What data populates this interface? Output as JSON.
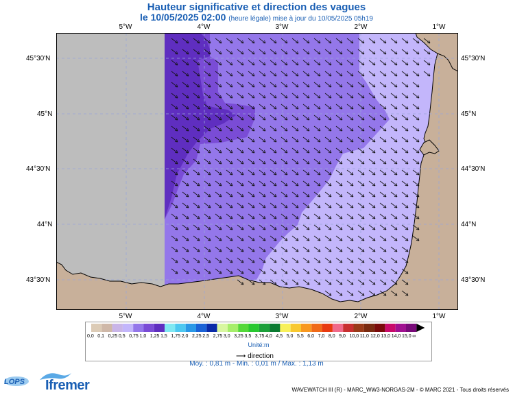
{
  "title": "Hauteur significative et direction des vagues",
  "subtitle": {
    "date": "le 10/05/2025 02:00",
    "note": "(heure légale) mise à jour du 10/05/2025 05h19"
  },
  "lon_labels": [
    "5°W",
    "4°W",
    "3°W",
    "2°W",
    "1°W"
  ],
  "lat_labels": [
    "45°30'N",
    "45°N",
    "44°30'N",
    "44°N",
    "43°30'N"
  ],
  "colors": {
    "land": "#c8b09a",
    "no_data": "#bdbdbd",
    "wave_0_5": "#c3b6fb",
    "wave_0_75": "#9477ea",
    "wave_1_0": "#7a4cd6",
    "wave_1_25": "#5f2ec0",
    "grid": "#9aa6d8",
    "text_blue": "#1a5fb4"
  },
  "legend": {
    "values": [
      "0,0",
      "0,1",
      "0,25",
      "0,5",
      "0,75",
      "1,0",
      "1,25",
      "1,5",
      "1,75",
      "2,0",
      "2,25",
      "2,5",
      "2,75",
      "3,0",
      "3,25",
      "3,5",
      "3,75",
      "4,0",
      "4,5",
      "5,0",
      "5,5",
      "6,0",
      "7,0",
      "8,0",
      "9,0",
      "10,0",
      "11,0",
      "12,0",
      "13,0",
      "14,0",
      "15,0",
      "∞"
    ],
    "colors": [
      "#dccbb6",
      "#cfb8a8",
      "#c9b5e8",
      "#c3b6fb",
      "#9477ea",
      "#7a4cd6",
      "#5f2ec0",
      "#7fe8f2",
      "#4dc8f0",
      "#2a98e6",
      "#1a62d6",
      "#0a2aa8",
      "#d8f7a0",
      "#a6ee6a",
      "#54d838",
      "#28c830",
      "#1ca03a",
      "#0a7a30",
      "#f8f05a",
      "#f8c830",
      "#f89820",
      "#f06a18",
      "#e83a10",
      "#f06a8a",
      "#c83030",
      "#9a3a18",
      "#7a2a10",
      "#7a0a0a",
      "#c80a6a",
      "#a01090",
      "#780a78"
    ],
    "unit": "Unité:m"
  },
  "direction_label": "direction",
  "stats": "Moy. : 0,81 m   -   Min. : 0,01 m / Max. : 1,13 m",
  "logos": {
    "lops": "LOPS",
    "ifremer": "Ifremer"
  },
  "credit": "WAVEWATCH III (R) - MARC_WW3-NORGAS-2M - © MARC 2021 - Tous droits réservés"
}
